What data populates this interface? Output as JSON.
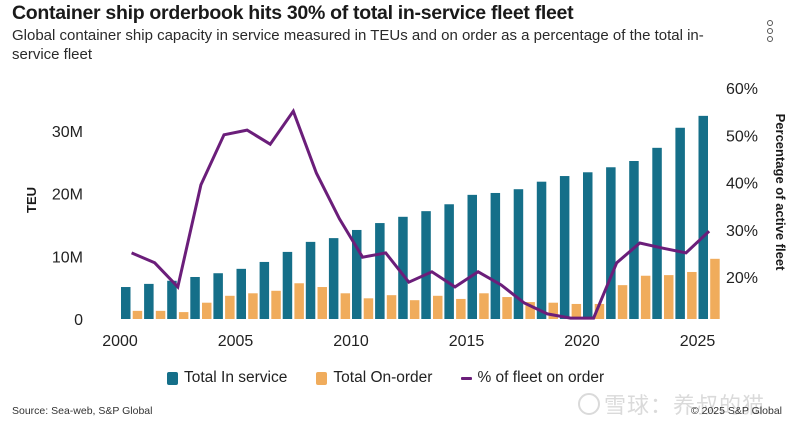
{
  "header": {
    "title": "Container ship orderbook hits 30% of total in-service fleet fleet",
    "subtitle": "Global container ship capacity in service measured in TEUs and on order as a percentage of the total in-service fleet",
    "menu_icon": "kebab-menu-icon"
  },
  "footer": {
    "source": "Source: Sea-web, S&P Global",
    "copyright": "© 2025 S&P Global",
    "watermark": "雪球：养叔的猫"
  },
  "colors": {
    "in_service": "#156f89",
    "on_order": "#f0ac5c",
    "pct_line": "#6b1e7a"
  },
  "chart_data": {
    "type": "bar",
    "title": "Container ship orderbook hits 30% of total in-service fleet fleet",
    "x": [
      2000,
      2001,
      2002,
      2003,
      2004,
      2005,
      2006,
      2007,
      2008,
      2009,
      2010,
      2011,
      2012,
      2013,
      2014,
      2015,
      2016,
      2017,
      2018,
      2019,
      2020,
      2021,
      2022,
      2023,
      2024,
      2025
    ],
    "xlabel": "",
    "x_ticks": [
      "2000",
      "2005",
      "2010",
      "2015",
      "2020",
      "2025"
    ],
    "x_tick_values": [
      2000,
      2005,
      2010,
      2015,
      2020,
      2025
    ],
    "ylabel": "TEU",
    "ylim": [
      0,
      35000000
    ],
    "y_ticks": [
      "0",
      "10M",
      "20M",
      "30M"
    ],
    "y_tick_values": [
      0,
      10000000,
      20000000,
      30000000
    ],
    "y2label": "Percentage of active fleet",
    "y2lim": [
      11,
      60
    ],
    "y2_ticks": [
      "20%",
      "30%",
      "40%",
      "50%",
      "60%"
    ],
    "y2_tick_values": [
      20,
      30,
      40,
      50,
      60
    ],
    "grid": false,
    "legend_position": "bottom",
    "series": [
      {
        "name": "Total In service",
        "type": "bar",
        "axis": "left",
        "values": [
          5100000,
          5600000,
          6100000,
          6700000,
          7300000,
          8000000,
          9100000,
          10700000,
          12300000,
          12900000,
          14200000,
          15300000,
          16300000,
          17200000,
          18300000,
          19800000,
          20100000,
          20700000,
          21900000,
          22800000,
          23400000,
          24200000,
          25200000,
          27300000,
          30500000,
          32400000
        ]
      },
      {
        "name": "Total On-order",
        "type": "bar",
        "axis": "left",
        "values": [
          1300000,
          1300000,
          1100000,
          2600000,
          3700000,
          4100000,
          4500000,
          5700000,
          5100000,
          4100000,
          3300000,
          3800000,
          3000000,
          3700000,
          3200000,
          4100000,
          3500000,
          2700000,
          2600000,
          2400000,
          2400000,
          5400000,
          6900000,
          7000000,
          7500000,
          9600000
        ]
      },
      {
        "name": "% of fleet on order",
        "type": "line",
        "axis": "right",
        "values": [
          25.1,
          23.0,
          17.9,
          39.5,
          50.1,
          51.1,
          48.1,
          55.1,
          42.0,
          32.3,
          24.2,
          25.1,
          18.9,
          21.1,
          17.9,
          21.1,
          18.3,
          14.5,
          12.2,
          11.3,
          11.3,
          23.0,
          27.2,
          26.1,
          25.1,
          29.7
        ]
      }
    ]
  }
}
